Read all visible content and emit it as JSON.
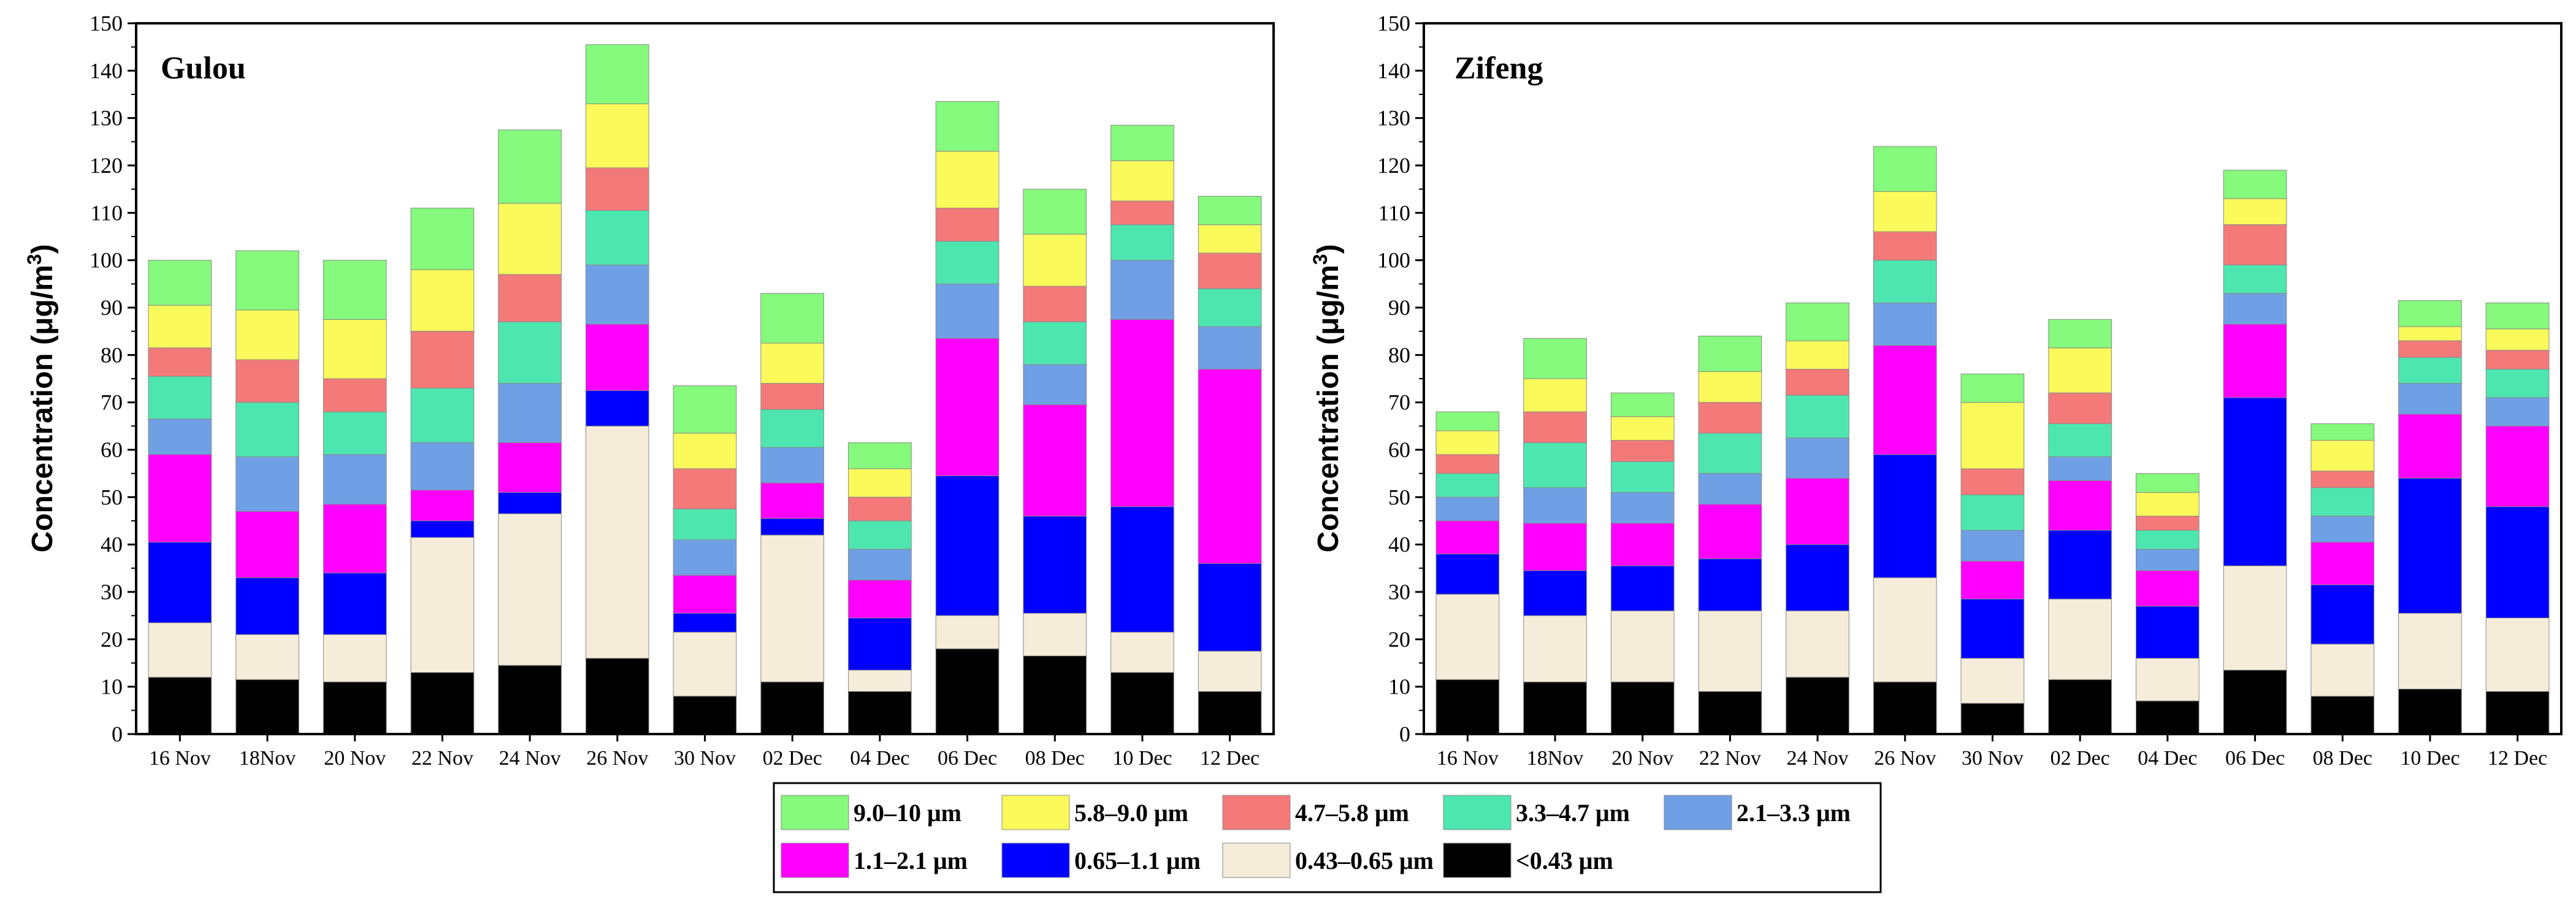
{
  "chart_data": [
    {
      "type": "bar",
      "stacked": true,
      "title": "Gulou",
      "ylabel": "Concentration (μg/m³)",
      "ylabel_parts": {
        "main": "Concentration (",
        "unit_mu": "μ",
        "unit_g": "g/m",
        "unit_sup": "3",
        "close": ")"
      },
      "ylim": [
        0,
        150
      ],
      "yticks": [
        0,
        10,
        20,
        30,
        40,
        50,
        60,
        70,
        80,
        90,
        100,
        110,
        120,
        130,
        140,
        150
      ],
      "categories": [
        "16 Nov",
        "18Nov",
        "20 Nov",
        "22 Nov",
        "24 Nov",
        "26 Nov",
        "30 Nov",
        "02 Dec",
        "04 Dec",
        "06 Dec",
        "08 Dec",
        "10 Dec",
        "12 Dec"
      ],
      "series": [
        {
          "name": "<0.43 μm",
          "values": [
            12,
            11.5,
            11,
            13,
            14.5,
            16,
            8,
            11,
            9,
            18,
            16.5,
            13,
            9
          ]
        },
        {
          "name": "0.43–0.65 μm",
          "values": [
            11.5,
            9.5,
            10,
            28.5,
            32,
            49,
            13.5,
            31,
            4.5,
            7,
            9,
            8.5,
            8.5
          ]
        },
        {
          "name": "0.65–1.1 μm",
          "values": [
            17,
            12,
            13,
            3.5,
            4.5,
            7.5,
            4,
            3.5,
            11,
            29.5,
            20.5,
            26.5,
            18.5
          ]
        },
        {
          "name": "1.1–2.1 μm",
          "values": [
            18.5,
            14,
            14.5,
            6.5,
            10.5,
            14,
            8,
            7.5,
            8,
            29,
            23.5,
            39.5,
            41
          ]
        },
        {
          "name": "2.1–3.3 μm",
          "values": [
            7.5,
            11.5,
            10.5,
            10,
            12.5,
            12.5,
            7.5,
            7.5,
            6.5,
            11.5,
            8.5,
            12.5,
            9
          ]
        },
        {
          "name": "3.3–4.7 μm",
          "values": [
            9,
            11.5,
            9,
            11.5,
            13,
            11.5,
            6.5,
            8,
            6,
            9,
            9,
            7.5,
            8
          ]
        },
        {
          "name": "4.7–5.8 μm",
          "values": [
            6,
            9,
            7,
            12,
            10,
            9,
            8.5,
            5.5,
            5,
            7,
            7.5,
            5,
            7.5
          ]
        },
        {
          "name": "5.8–9.0 μm",
          "values": [
            9,
            10.5,
            12.5,
            13,
            15,
            13.5,
            7.5,
            8.5,
            6,
            12,
            11,
            8.5,
            6
          ]
        },
        {
          "name": "9.0–10 μm",
          "values": [
            9.5,
            12.5,
            12.5,
            13,
            15.5,
            12.5,
            10,
            10.5,
            5.5,
            10.5,
            9.5,
            7.5,
            6
          ]
        }
      ]
    },
    {
      "type": "bar",
      "stacked": true,
      "title": "Zifeng",
      "ylabel": "Concentration (μg/m³)",
      "ylabel_parts": {
        "main": "Concentration (",
        "unit_mu": "μ",
        "unit_g": "g/m",
        "unit_sup": "3",
        "close": ")"
      },
      "ylim": [
        0,
        150
      ],
      "yticks": [
        0,
        10,
        20,
        30,
        40,
        50,
        60,
        70,
        80,
        90,
        100,
        110,
        120,
        130,
        140,
        150
      ],
      "categories": [
        "16 Nov",
        "18Nov",
        "20 Nov",
        "22 Nov",
        "24 Nov",
        "26 Nov",
        "30 Nov",
        "02 Dec",
        "04 Dec",
        "06 Dec",
        "08 Dec",
        "10 Dec",
        "12 Dec"
      ],
      "series": [
        {
          "name": "<0.43 μm",
          "values": [
            11.5,
            11,
            11,
            9,
            12,
            11,
            6.5,
            11.5,
            7,
            13.5,
            8,
            9.5,
            9
          ]
        },
        {
          "name": "0.43–0.65 μm",
          "values": [
            18,
            14,
            15,
            17,
            14,
            22,
            9.5,
            17,
            9,
            22,
            11,
            16,
            15.5
          ]
        },
        {
          "name": "0.65–1.1 μm",
          "values": [
            8.5,
            9.5,
            9.5,
            11,
            14,
            26,
            12.5,
            14.5,
            11,
            35.5,
            12.5,
            28.5,
            23.5
          ]
        },
        {
          "name": "1.1–2.1 μm",
          "values": [
            7,
            10,
            9,
            11.5,
            14,
            23,
            8,
            10.5,
            7.5,
            15.5,
            9,
            13.5,
            17
          ]
        },
        {
          "name": "2.1–3.3 μm",
          "values": [
            5,
            7.5,
            6.5,
            6.5,
            8.5,
            9,
            6.5,
            5,
            4.5,
            6.5,
            5.5,
            6.5,
            6
          ]
        },
        {
          "name": "3.3–4.7 μm",
          "values": [
            5,
            9.5,
            6.5,
            8.5,
            9,
            9,
            7.5,
            7,
            4,
            6,
            6,
            5.5,
            6
          ]
        },
        {
          "name": "4.7–5.8 μm",
          "values": [
            4,
            6.5,
            4.5,
            6.5,
            5.5,
            6,
            5.5,
            6.5,
            3,
            8.5,
            3.5,
            3.5,
            4
          ]
        },
        {
          "name": "5.8–9.0 μm",
          "values": [
            5,
            7,
            5,
            6.5,
            6,
            8.5,
            14,
            9.5,
            5,
            5.5,
            6.5,
            3,
            4.5
          ]
        },
        {
          "name": "9.0–10 μm",
          "values": [
            4,
            8.5,
            5,
            7.5,
            8,
            9.5,
            6,
            6,
            4,
            6,
            3.5,
            5.5,
            5.5
          ]
        }
      ]
    }
  ],
  "legend": {
    "rows": [
      [
        "9.0–10 μm",
        "5.8–9.0 μm",
        "4.7–5.8 μm",
        "3.3–4.7 μm",
        "2.1–3.3 μm"
      ],
      [
        "1.1–2.1 μm",
        "0.65–1.1 μm",
        "0.43–0.65 μm",
        "<0.43 μm"
      ]
    ]
  },
  "series_colors": {
    "<0.43 μm": "#000000",
    "0.43–0.65 μm": "#f5edd9",
    "0.65–1.1 μm": "#0000ff",
    "1.1–2.1 μm": "#ff00ff",
    "2.1–3.3 μm": "#6fa0e6",
    "3.3–4.7 μm": "#4ee6b0",
    "4.7–5.8 μm": "#f47a7a",
    "5.8–9.0 μm": "#fafa5a",
    "9.0–10 μm": "#85fa7c"
  }
}
